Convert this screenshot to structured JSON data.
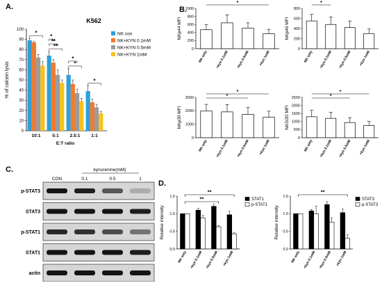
{
  "colors": {
    "nk_con": "#2e9fd8",
    "kyn_01": "#f07b30",
    "kyn_05": "#9b9b9b",
    "kyn_1": "#f7c21c",
    "stat_dark": "#000000",
    "stat_light": "#ffffff"
  },
  "panels": {
    "a": {
      "label": "A."
    },
    "b": {
      "label": "B."
    },
    "c": {
      "label": "C."
    },
    "d": {
      "label": "D."
    }
  },
  "chart_data": [
    {
      "id": "A",
      "type": "bar",
      "title": "K562",
      "xlabel": "E:T ratio",
      "ylabel": "% of calcein lysis",
      "ylim": [
        0,
        100
      ],
      "yticks": [
        0,
        10,
        20,
        30,
        40,
        50,
        60,
        70,
        80,
        90,
        100
      ],
      "categories": [
        "10:1",
        "5:1",
        "2.5:1",
        "1:1"
      ],
      "series": [
        {
          "name": "NK con",
          "values": [
            89,
            74,
            55,
            39
          ],
          "errors": [
            2,
            4,
            6,
            5
          ]
        },
        {
          "name": "NK+KYN 0.1mM",
          "values": [
            87,
            67,
            46,
            28
          ],
          "errors": [
            1,
            3,
            4,
            3
          ]
        },
        {
          "name": "NK+KYN 0.5mM",
          "values": [
            72,
            55,
            37,
            23
          ],
          "errors": [
            3,
            5,
            4,
            3
          ]
        },
        {
          "name": "NK+KYN 1mM",
          "values": [
            64,
            47,
            29,
            17
          ],
          "errors": [
            4,
            3,
            3,
            2
          ]
        }
      ],
      "legend_position": "top-right",
      "significance": [
        {
          "label": "*",
          "pair": [
            "10:1",
            0,
            3
          ]
        },
        {
          "label": "**",
          "pair": [
            "5:1",
            0,
            3
          ]
        },
        {
          "label": "**",
          "pair": [
            "5:1",
            0,
            2
          ]
        },
        {
          "label": "*",
          "pair": [
            "5:1",
            0,
            1
          ]
        },
        {
          "label": "*",
          "pair": [
            "2.5:1",
            0,
            3
          ]
        },
        {
          "label": "*",
          "pair": [
            "2.5:1",
            0,
            2
          ]
        },
        {
          "label": "*",
          "pair": [
            "1:1",
            0,
            3
          ]
        }
      ]
    },
    {
      "id": "B1",
      "type": "bar",
      "ylabel": "NKp44 MFI",
      "ylim": [
        0,
        1000
      ],
      "yticks": [
        0,
        200,
        400,
        600,
        800,
        1000
      ],
      "categories": [
        "NK only",
        "+kyn 0.1mM",
        "+kyn 0.5mM",
        "+kyn 1mM"
      ],
      "values": [
        470,
        640,
        510,
        370
      ],
      "errors": [
        130,
        200,
        130,
        110
      ],
      "significance": [
        {
          "label": "*",
          "from": 0,
          "to": 3
        }
      ]
    },
    {
      "id": "B2",
      "type": "bar",
      "ylabel": "NKp46 MFI",
      "ylim": [
        0,
        800
      ],
      "yticks": [
        0,
        200,
        400,
        600,
        800
      ],
      "categories": [
        "NK only",
        "+kyn 0.1mM",
        "+kyn 0.5mM",
        "+kyn 1mM"
      ],
      "values": [
        550,
        480,
        420,
        300
      ],
      "errors": [
        130,
        150,
        130,
        90
      ],
      "significance": [
        {
          "label": "*",
          "from": 0,
          "to": 1
        }
      ]
    },
    {
      "id": "B3",
      "type": "bar",
      "ylabel": "NKp30 MFI",
      "ylim": [
        0,
        3000
      ],
      "yticks": [
        0,
        1000,
        2000,
        3000
      ],
      "categories": [
        "NK only",
        "+kyn 0.1mM",
        "+kyn 0.5mM",
        "+kyn 1mM"
      ],
      "values": [
        1980,
        1920,
        1740,
        1520
      ],
      "errors": [
        500,
        550,
        500,
        450
      ],
      "significance": [
        {
          "label": "*",
          "from": 0,
          "to": 3
        },
        {
          "label": "*",
          "from": 0,
          "to": 2
        }
      ]
    },
    {
      "id": "B4",
      "type": "bar",
      "ylabel": "NKG2D MFI",
      "ylim": [
        0,
        2500
      ],
      "yticks": [
        0,
        500,
        1000,
        1500,
        2000,
        2500
      ],
      "categories": [
        "NK only",
        "+kyn 0.1mM",
        "+kyn 0.5mM",
        "+kyn 1mM"
      ],
      "values": [
        1300,
        1200,
        940,
        760
      ],
      "errors": [
        400,
        380,
        300,
        250
      ],
      "significance": [
        {
          "label": "*",
          "from": 0,
          "to": 3
        },
        {
          "label": "*",
          "from": 0,
          "to": 2
        }
      ]
    },
    {
      "id": "D1",
      "type": "bar",
      "ylabel": "Relative intensity",
      "ylim": [
        0,
        1.5
      ],
      "yticks": [
        0.0,
        0.5,
        1.0,
        1.5
      ],
      "ytick_labels": [
        "0.0",
        "0.5",
        "1.0",
        "1.5"
      ],
      "categories": [
        "NK only",
        "+kyn 0.1mM",
        "+kyn 0.5mM",
        "+kyn 1mM"
      ],
      "series": [
        {
          "name": "STAT1",
          "values": [
            1.0,
            1.1,
            1.21,
            0.97
          ],
          "errors": [
            0.0,
            0.05,
            0.06,
            0.1
          ]
        },
        {
          "name": "p-STAT1",
          "values": [
            1.0,
            0.88,
            0.63,
            0.43
          ],
          "errors": [
            0.0,
            0.07,
            0.03,
            0.03
          ]
        }
      ],
      "legend_position": "top-right",
      "significance": [
        {
          "label": "**",
          "from": 0,
          "to": 3
        },
        {
          "label": "**",
          "from": 0,
          "to": 2
        }
      ]
    },
    {
      "id": "D2",
      "type": "bar",
      "ylabel": "Relative intensity",
      "ylim": [
        0,
        1.5
      ],
      "yticks": [
        0.0,
        0.5,
        1.0,
        1.5
      ],
      "ytick_labels": [
        "0.0",
        "0.5",
        "1.0",
        "1.5"
      ],
      "categories": [
        "NK only",
        "+kyn 0.1mM",
        "+kyn 0.5mM",
        "+kyn 1mM"
      ],
      "series": [
        {
          "name": "STAT3",
          "values": [
            1.0,
            1.08,
            1.26,
            1.03
          ],
          "errors": [
            0.0,
            0.04,
            0.08,
            0.1
          ]
        },
        {
          "name": "p-STAT3",
          "values": [
            1.0,
            1.0,
            0.76,
            0.3
          ],
          "errors": [
            0.0,
            0.22,
            0.12,
            0.1
          ]
        }
      ],
      "legend_position": "top-right",
      "significance": [
        {
          "label": "**",
          "from": 0,
          "to": 3
        }
      ]
    }
  ],
  "blot": {
    "header": "kynurenine(mM)",
    "lanes": [
      "CON",
      "0.1",
      "0.5",
      "1"
    ],
    "rows": [
      {
        "label": "p-STAT3",
        "intensities": [
          1.0,
          0.95,
          0.65,
          0.2
        ]
      },
      {
        "label": "STAT3",
        "intensities": [
          1.0,
          1.0,
          1.0,
          0.95
        ]
      },
      {
        "label": "p-STAT1",
        "intensities": [
          0.9,
          0.85,
          0.7,
          0.5
        ]
      },
      {
        "label": "STAT1",
        "intensities": [
          1.0,
          1.0,
          1.0,
          0.95
        ]
      },
      {
        "label": "actin",
        "intensities": [
          1.0,
          1.0,
          1.0,
          1.0
        ]
      }
    ]
  }
}
